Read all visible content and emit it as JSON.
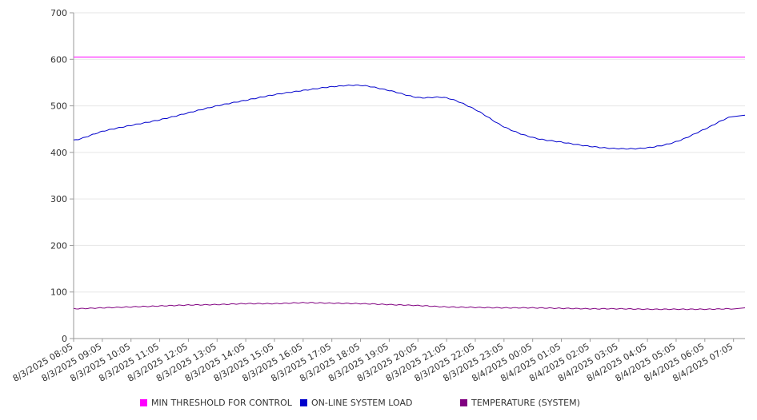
{
  "chart_data": {
    "type": "line",
    "title": "",
    "xlabel": "",
    "ylabel": "",
    "ylim": [
      0,
      700
    ],
    "yticks": [
      0,
      100,
      200,
      300,
      400,
      500,
      600,
      700
    ],
    "grid": true,
    "legend_position": "bottom",
    "categories": [
      "8/3/2025 08:05",
      "8/3/2025 09:05",
      "8/3/2025 10:05",
      "8/3/2025 11:05",
      "8/3/2025 12:05",
      "8/3/2025 13:05",
      "8/3/2025 14:05",
      "8/3/2025 15:05",
      "8/3/2025 16:05",
      "8/3/2025 17:05",
      "8/3/2025 18:05",
      "8/3/2025 19:05",
      "8/3/2025 20:05",
      "8/3/2025 21:05",
      "8/3/2025 22:05",
      "8/3/2025 23:05",
      "8/4/2025 00:05",
      "8/4/2025 01:05",
      "8/4/2025 02:05",
      "8/4/2025 03:05",
      "8/4/2025 04:05",
      "8/4/2025 05:05",
      "8/4/2025 06:05",
      "8/4/2025 07:05"
    ],
    "series": [
      {
        "name": "MIN THRESHOLD FOR CONTROL",
        "color": "#ff00ff",
        "values": [
          605,
          605,
          605,
          605,
          605,
          605,
          605,
          605,
          605,
          605,
          605,
          605,
          605,
          605,
          605,
          605,
          605,
          605,
          605,
          605,
          605,
          605,
          605,
          605
        ]
      },
      {
        "name": "ON-LINE SYSTEM LOAD",
        "color": "#0000cc",
        "values": [
          426,
          445,
          458,
          470,
          485,
          500,
          512,
          524,
          533,
          541,
          544,
          533,
          518,
          517,
          492,
          455,
          432,
          422,
          413,
          408,
          410,
          423,
          450,
          478
        ]
      },
      {
        "name": "TEMPERATURE (SYSTEM)",
        "color": "#800080",
        "values": [
          64,
          66,
          68,
          70,
          72,
          73,
          75,
          75,
          77,
          76,
          75,
          73,
          71,
          68,
          67,
          66,
          66,
          65,
          64,
          64,
          63,
          63,
          63,
          64
        ]
      }
    ]
  }
}
